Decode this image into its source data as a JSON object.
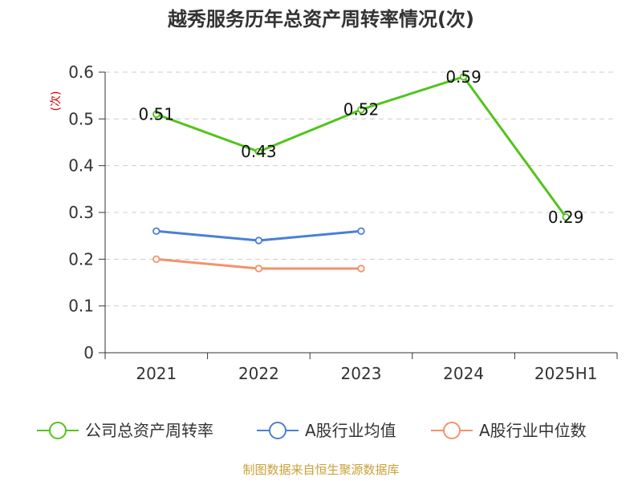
{
  "chart_data": {
    "type": "line",
    "title": "越秀服务历年总资产周转率情况(次)",
    "ylabel": "(次)",
    "xlabel": "",
    "categories": [
      "2021",
      "2022",
      "2023",
      "2024",
      "2025H1"
    ],
    "ylim": [
      0,
      0.6
    ],
    "yticks": [
      "0",
      "0.1",
      "0.2",
      "0.3",
      "0.4",
      "0.5",
      "0.6"
    ],
    "grid": true,
    "legend_position": "bottom",
    "series": [
      {
        "name": "公司总资产周转率",
        "color": "#52c41a",
        "values": [
          0.51,
          0.43,
          0.52,
          0.59,
          0.29
        ],
        "labels": [
          "0.51",
          "0.43",
          "0.52",
          "0.59",
          "0.29"
        ],
        "show_labels": true
      },
      {
        "name": "A股行业均值",
        "color": "#4a7fd6",
        "values": [
          0.26,
          0.24,
          0.26,
          null,
          null
        ],
        "show_labels": false
      },
      {
        "name": "A股行业中位数",
        "color": "#f4926b",
        "values": [
          0.2,
          0.18,
          0.18,
          null,
          null
        ],
        "show_labels": false
      }
    ],
    "source": "制图数据来自恒生聚源数据库"
  }
}
